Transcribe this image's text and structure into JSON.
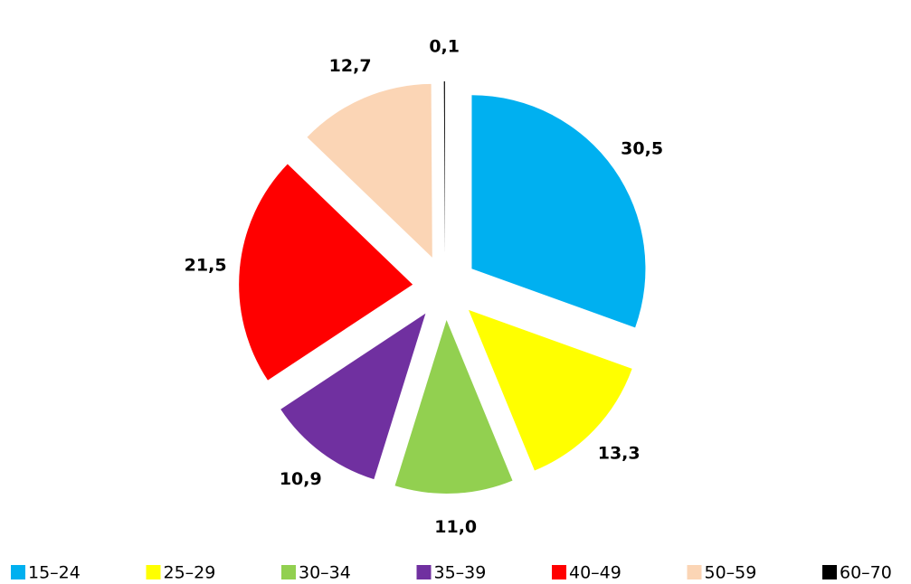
{
  "chart_data": {
    "type": "pie",
    "categories": [
      "15–24",
      "25–29",
      "30–34",
      "35–39",
      "40–49",
      "50–59",
      "60–70"
    ],
    "values": [
      30.5,
      13.3,
      11.0,
      10.9,
      21.5,
      12.7,
      0.1
    ],
    "value_labels": [
      "30,5",
      "13,3",
      "11,0",
      "10,9",
      "21,5",
      "12,7",
      "0,1"
    ],
    "colors": [
      "#00b0f0",
      "#ffff00",
      "#92d050",
      "#7030a0",
      "#ff0000",
      "#fbd5b5",
      "#000000"
    ],
    "legend": "bottom"
  }
}
